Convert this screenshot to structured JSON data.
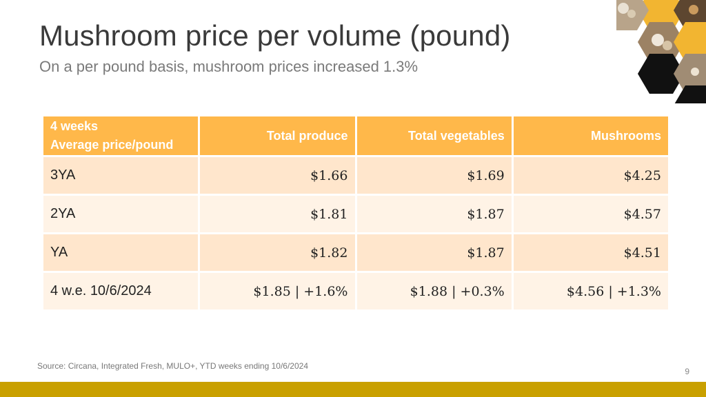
{
  "slide": {
    "title": "Mushroom price per volume (pound)",
    "subtitle": "On a per pound basis, mushroom prices increased 1.3%",
    "source": "Source: Circana, Integrated Fresh, MULO+, YTD weeks ending 10/6/2024",
    "page_number": "9"
  },
  "table": {
    "header_line1": "4 weeks",
    "header_line2": "Average price/pound",
    "columns": [
      "Total produce",
      "Total vegetables",
      "Mushrooms"
    ],
    "rows": [
      {
        "label": "3YA",
        "values": [
          "$1.66",
          "$1.69",
          "$4.25"
        ]
      },
      {
        "label": "2YA",
        "values": [
          "$1.81",
          "$1.87",
          "$4.57"
        ]
      },
      {
        "label": "YA",
        "values": [
          "$1.82",
          "$1.87",
          "$4.51"
        ]
      },
      {
        "label": "4 w.e. 10/6/2024",
        "values": [
          "$1.85 | +1.6%",
          "$1.88 | +0.3%",
          "$4.56 | +1.3%"
        ]
      }
    ]
  },
  "colors": {
    "header": "#ffb84a",
    "row_dark": "#ffe6cc",
    "row_light": "#fff3e6",
    "accent_bar": "#c9a000",
    "hex_gold": "#f2b531",
    "hex_black": "#111111"
  },
  "decor": {
    "icon": "honeycomb-mushroom-photos-icon"
  }
}
